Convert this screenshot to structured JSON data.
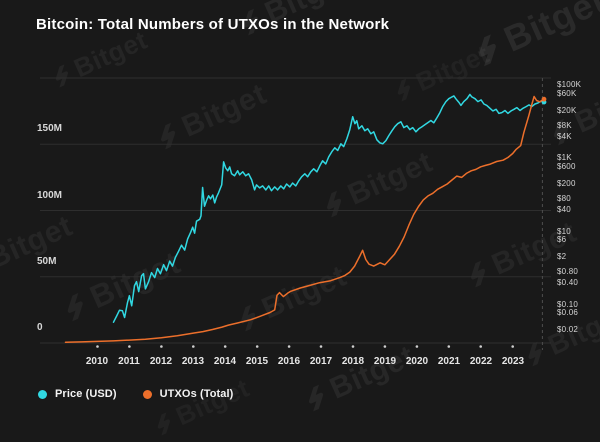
{
  "title": "Bitcoin: Total Numbers of UTXOs in the Network",
  "watermark": {
    "text": "Bitget"
  },
  "legend": {
    "items": [
      {
        "label": "Price (USD)",
        "series": "price"
      },
      {
        "label": "UTXOs (Total)",
        "series": "utxos"
      }
    ]
  },
  "chart_data": {
    "type": "line",
    "title": "Bitcoin: Total Numbers of UTXOs in the Network",
    "grid": "horizontal",
    "legend_position": "bottom-left",
    "x_axis": {
      "tick_labels": [
        "2010",
        "2011",
        "2012",
        "2013",
        "2014",
        "2015",
        "2016",
        "2017",
        "2018",
        "2019",
        "2020",
        "2021",
        "2022",
        "2023"
      ],
      "range_years": [
        2008.2,
        2024.2
      ]
    },
    "left_axis": {
      "title": "UTXOs total",
      "units": "millions",
      "range": [
        0,
        200
      ],
      "gridline_values": [
        0,
        50,
        100,
        150,
        200
      ],
      "ticks": [
        {
          "label": "150M",
          "value": 150
        },
        {
          "label": "100M",
          "value": 100
        },
        {
          "label": "50M",
          "value": 50
        },
        {
          "label": "0",
          "value": 0
        }
      ]
    },
    "right_axis": {
      "title": "Price (USD)",
      "type": "log",
      "range": [
        0.0086,
        155000
      ],
      "ticks": [
        {
          "label": "$100K",
          "value": 100000
        },
        {
          "label": "$60K",
          "value": 60000
        },
        {
          "label": "$20K",
          "value": 20000
        },
        {
          "label": "$8K",
          "value": 8000
        },
        {
          "label": "$4K",
          "value": 4000
        },
        {
          "label": "$1K",
          "value": 1000
        },
        {
          "label": "$600",
          "value": 600
        },
        {
          "label": "$200",
          "value": 200
        },
        {
          "label": "$80",
          "value": 80
        },
        {
          "label": "$40",
          "value": 40
        },
        {
          "label": "$10",
          "value": 10
        },
        {
          "label": "$6",
          "value": 6
        },
        {
          "label": "$2",
          "value": 2
        },
        {
          "label": "$0.80",
          "value": 0.8
        },
        {
          "label": "$0.40",
          "value": 0.4
        },
        {
          "label": "$0.10",
          "value": 0.1
        },
        {
          "label": "$0.06",
          "value": 0.06
        },
        {
          "label": "$0.02",
          "value": 0.02
        }
      ]
    },
    "marker_year": 2023.93,
    "series": [
      {
        "id": "price",
        "name": "Price (USD)",
        "axis": "right",
        "color": "#31d8e2",
        "points": [
          [
            2010.5,
            0.032
          ],
          [
            2010.6,
            0.047
          ],
          [
            2010.69,
            0.068
          ],
          [
            2010.78,
            0.066
          ],
          [
            2010.85,
            0.043
          ],
          [
            2010.94,
            0.11
          ],
          [
            2011.0,
            0.17
          ],
          [
            2011.07,
            0.09
          ],
          [
            2011.16,
            0.32
          ],
          [
            2011.22,
            0.41
          ],
          [
            2011.29,
            0.22
          ],
          [
            2011.38,
            0.6
          ],
          [
            2011.44,
            0.68
          ],
          [
            2011.5,
            0.26
          ],
          [
            2011.6,
            0.41
          ],
          [
            2011.69,
            0.73
          ],
          [
            2011.79,
            0.53
          ],
          [
            2011.88,
            0.94
          ],
          [
            2011.97,
            0.68
          ],
          [
            2012.07,
            1.2
          ],
          [
            2012.16,
            0.82
          ],
          [
            2012.26,
            1.5
          ],
          [
            2012.35,
            1.1
          ],
          [
            2012.44,
            1.9
          ],
          [
            2012.54,
            2.8
          ],
          [
            2012.63,
            4.1
          ],
          [
            2012.73,
            3.0
          ],
          [
            2012.82,
            6.0
          ],
          [
            2012.92,
            9.3
          ],
          [
            2012.98,
            12.7
          ],
          [
            2013.04,
            8.7
          ],
          [
            2013.1,
            18.6
          ],
          [
            2013.2,
            21
          ],
          [
            2013.24,
            26
          ],
          [
            2013.29,
            156
          ],
          [
            2013.35,
            48
          ],
          [
            2013.42,
            71
          ],
          [
            2013.48,
            92
          ],
          [
            2013.54,
            76
          ],
          [
            2013.61,
            97
          ],
          [
            2013.67,
            59
          ],
          [
            2013.73,
            86
          ],
          [
            2013.79,
            111
          ],
          [
            2013.89,
            183
          ],
          [
            2013.95,
            780
          ],
          [
            2014.01,
            540
          ],
          [
            2014.08,
            445
          ],
          [
            2014.14,
            570
          ],
          [
            2014.2,
            370
          ],
          [
            2014.29,
            325
          ],
          [
            2014.39,
            445
          ],
          [
            2014.45,
            347
          ],
          [
            2014.55,
            420
          ],
          [
            2014.64,
            325
          ],
          [
            2014.73,
            370
          ],
          [
            2014.83,
            252
          ],
          [
            2014.92,
            134
          ],
          [
            2014.98,
            183
          ],
          [
            2015.08,
            152
          ],
          [
            2015.17,
            172
          ],
          [
            2015.27,
            134
          ],
          [
            2015.36,
            172
          ],
          [
            2015.45,
            127
          ],
          [
            2015.55,
            162
          ],
          [
            2015.64,
            134
          ],
          [
            2015.74,
            172
          ],
          [
            2015.83,
            143
          ],
          [
            2015.92,
            194
          ],
          [
            2016.02,
            162
          ],
          [
            2016.11,
            206
          ],
          [
            2016.21,
            172
          ],
          [
            2016.3,
            236
          ],
          [
            2016.39,
            305
          ],
          [
            2016.49,
            370
          ],
          [
            2016.58,
            305
          ],
          [
            2016.68,
            420
          ],
          [
            2016.77,
            505
          ],
          [
            2016.87,
            420
          ],
          [
            2016.96,
            610
          ],
          [
            2017.05,
            840
          ],
          [
            2017.15,
            690
          ],
          [
            2017.24,
            1070
          ],
          [
            2017.34,
            1500
          ],
          [
            2017.43,
            1900
          ],
          [
            2017.52,
            1600
          ],
          [
            2017.62,
            2450
          ],
          [
            2017.71,
            2050
          ],
          [
            2017.81,
            3400
          ],
          [
            2017.9,
            6000
          ],
          [
            2017.99,
            13500
          ],
          [
            2018.06,
            8700
          ],
          [
            2018.12,
            10500
          ],
          [
            2018.18,
            6300
          ],
          [
            2018.28,
            7600
          ],
          [
            2018.37,
            5600
          ],
          [
            2018.46,
            6300
          ],
          [
            2018.56,
            4600
          ],
          [
            2018.65,
            5200
          ],
          [
            2018.75,
            3150
          ],
          [
            2018.84,
            2600
          ],
          [
            2018.93,
            2450
          ],
          [
            2019.03,
            3000
          ],
          [
            2019.12,
            4100
          ],
          [
            2019.22,
            5600
          ],
          [
            2019.31,
            7200
          ],
          [
            2019.4,
            8700
          ],
          [
            2019.5,
            9800
          ],
          [
            2019.59,
            6800
          ],
          [
            2019.69,
            7600
          ],
          [
            2019.78,
            6000
          ],
          [
            2019.87,
            6800
          ],
          [
            2019.97,
            5200
          ],
          [
            2020.06,
            6300
          ],
          [
            2020.16,
            7200
          ],
          [
            2020.25,
            8100
          ],
          [
            2020.34,
            9200
          ],
          [
            2020.44,
            10600
          ],
          [
            2020.53,
            9200
          ],
          [
            2020.63,
            12800
          ],
          [
            2020.72,
            17500
          ],
          [
            2020.81,
            25500
          ],
          [
            2020.91,
            35000
          ],
          [
            2021.0,
            42000
          ],
          [
            2021.1,
            47000
          ],
          [
            2021.16,
            50000
          ],
          [
            2021.22,
            42000
          ],
          [
            2021.32,
            33000
          ],
          [
            2021.38,
            27500
          ],
          [
            2021.47,
            35000
          ],
          [
            2021.57,
            42000
          ],
          [
            2021.66,
            55000
          ],
          [
            2021.72,
            47000
          ],
          [
            2021.82,
            42000
          ],
          [
            2021.91,
            35000
          ],
          [
            2022.01,
            39000
          ],
          [
            2022.1,
            30000
          ],
          [
            2022.19,
            27500
          ],
          [
            2022.29,
            23000
          ],
          [
            2022.38,
            19500
          ],
          [
            2022.48,
            21500
          ],
          [
            2022.57,
            16600
          ],
          [
            2022.66,
            17500
          ],
          [
            2022.76,
            20000
          ],
          [
            2022.85,
            16600
          ],
          [
            2022.95,
            19500
          ],
          [
            2023.04,
            21500
          ],
          [
            2023.13,
            24000
          ],
          [
            2023.23,
            20000
          ],
          [
            2023.32,
            23000
          ],
          [
            2023.42,
            25500
          ],
          [
            2023.51,
            28500
          ],
          [
            2023.6,
            25500
          ],
          [
            2023.7,
            30000
          ],
          [
            2023.79,
            32000
          ],
          [
            2023.89,
            36000
          ],
          [
            2023.98,
            34000
          ]
        ]
      },
      {
        "id": "utxos",
        "name": "UTXOs (Total)",
        "axis": "left",
        "color": "#ec6f2b",
        "points": [
          [
            2009.0,
            0.5
          ],
          [
            2009.5,
            0.8
          ],
          [
            2010.0,
            1.2
          ],
          [
            2010.5,
            1.6
          ],
          [
            2011.0,
            2.2
          ],
          [
            2011.5,
            2.9
          ],
          [
            2012.0,
            4.0
          ],
          [
            2012.5,
            5.5
          ],
          [
            2013.0,
            7.5
          ],
          [
            2013.3,
            8.6
          ],
          [
            2013.6,
            10.2
          ],
          [
            2013.9,
            12.0
          ],
          [
            2014.1,
            13.5
          ],
          [
            2014.4,
            15.2
          ],
          [
            2014.8,
            17.6
          ],
          [
            2015.1,
            20.2
          ],
          [
            2015.4,
            23.0
          ],
          [
            2015.55,
            25.0
          ],
          [
            2015.62,
            36.0
          ],
          [
            2015.7,
            38.0
          ],
          [
            2015.82,
            35.0
          ],
          [
            2015.95,
            37.5
          ],
          [
            2016.05,
            39.0
          ],
          [
            2016.35,
            41.5
          ],
          [
            2016.65,
            43.5
          ],
          [
            2016.95,
            45.5
          ],
          [
            2017.3,
            47.0
          ],
          [
            2017.6,
            49.5
          ],
          [
            2017.75,
            51.0
          ],
          [
            2017.9,
            53.5
          ],
          [
            2018.05,
            58.0
          ],
          [
            2018.2,
            65.0
          ],
          [
            2018.3,
            70.0
          ],
          [
            2018.4,
            63.0
          ],
          [
            2018.5,
            59.5
          ],
          [
            2018.65,
            58.0
          ],
          [
            2018.85,
            60.5
          ],
          [
            2019.0,
            59.0
          ],
          [
            2019.15,
            63.0
          ],
          [
            2019.3,
            67.0
          ],
          [
            2019.45,
            73.0
          ],
          [
            2019.6,
            80.0
          ],
          [
            2019.75,
            89.0
          ],
          [
            2019.9,
            97.0
          ],
          [
            2020.05,
            103
          ],
          [
            2020.2,
            108
          ],
          [
            2020.35,
            111
          ],
          [
            2020.5,
            113
          ],
          [
            2020.65,
            116
          ],
          [
            2020.8,
            118
          ],
          [
            2020.95,
            120
          ],
          [
            2021.1,
            123
          ],
          [
            2021.25,
            126
          ],
          [
            2021.4,
            125
          ],
          [
            2021.55,
            128
          ],
          [
            2021.7,
            130
          ],
          [
            2021.85,
            131
          ],
          [
            2022.0,
            133
          ],
          [
            2022.15,
            134
          ],
          [
            2022.3,
            135
          ],
          [
            2022.5,
            137
          ],
          [
            2022.7,
            138
          ],
          [
            2022.85,
            140
          ],
          [
            2023.0,
            143
          ],
          [
            2023.1,
            146
          ],
          [
            2023.25,
            149
          ],
          [
            2023.35,
            159
          ],
          [
            2023.5,
            171
          ],
          [
            2023.6,
            180
          ],
          [
            2023.67,
            186
          ],
          [
            2023.75,
            183
          ],
          [
            2023.85,
            182
          ],
          [
            2023.98,
            184
          ]
        ]
      }
    ]
  }
}
